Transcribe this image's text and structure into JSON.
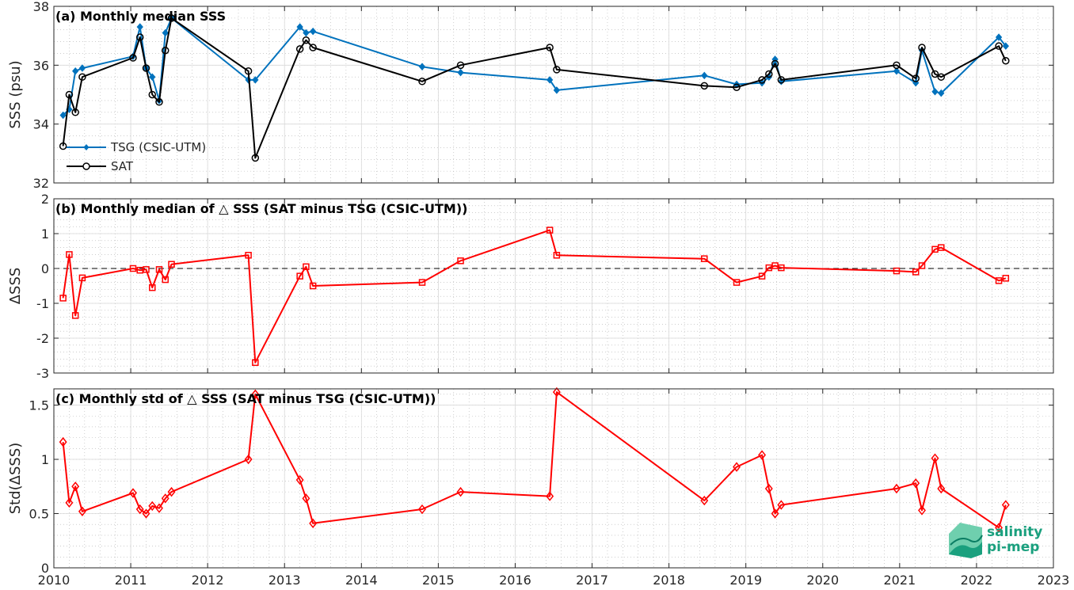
{
  "chart_data": [
    {
      "panel": "a",
      "type": "line",
      "title": "(a) Monthly median SSS",
      "ylabel": "SSS (psu)",
      "xlim": [
        2010,
        2023
      ],
      "ylim": [
        32,
        38
      ],
      "xticks": [
        2010,
        2011,
        2012,
        2013,
        2014,
        2015,
        2016,
        2017,
        2018,
        2019,
        2020,
        2021,
        2022,
        2023
      ],
      "yticks": [
        32,
        34,
        36,
        38
      ],
      "grid": true,
      "legend": "lower-left",
      "series": [
        {
          "name": "TSG (CSIC-UTM)",
          "color": "#0072BD",
          "marker": "diamond-filled",
          "x": [
            2010.12,
            2010.2,
            2010.28,
            2010.37,
            2011.03,
            2011.12,
            2011.2,
            2011.28,
            2011.37,
            2011.45,
            2011.53,
            2012.53,
            2012.62,
            2013.2,
            2013.28,
            2013.37,
            2014.79,
            2015.29,
            2016.45,
            2016.54,
            2018.46,
            2018.88,
            2019.21,
            2019.3,
            2019.38,
            2019.46,
            2020.96,
            2021.21,
            2021.29,
            2021.46,
            2021.54,
            2022.29,
            2022.38
          ],
          "y": [
            34.3,
            34.5,
            35.8,
            35.9,
            36.3,
            37.3,
            35.9,
            35.6,
            34.8,
            37.1,
            37.6,
            35.5,
            35.5,
            37.3,
            37.1,
            37.15,
            35.95,
            35.75,
            35.5,
            35.15,
            35.65,
            35.35,
            35.4,
            35.6,
            36.2,
            35.45,
            35.8,
            35.4,
            36.5,
            35.1,
            35.05,
            36.95,
            36.65
          ]
        },
        {
          "name": "SAT",
          "color": "#000000",
          "marker": "circle-open",
          "x": [
            2010.12,
            2010.2,
            2010.28,
            2010.37,
            2011.03,
            2011.12,
            2011.2,
            2011.28,
            2011.37,
            2011.45,
            2011.53,
            2012.53,
            2012.62,
            2013.2,
            2013.28,
            2013.37,
            2014.79,
            2015.29,
            2016.45,
            2016.54,
            2018.46,
            2018.88,
            2019.21,
            2019.3,
            2019.38,
            2019.46,
            2020.96,
            2021.21,
            2021.29,
            2021.46,
            2021.54,
            2022.29,
            2022.38
          ],
          "y": [
            33.25,
            35.0,
            34.4,
            35.6,
            36.25,
            36.95,
            35.9,
            35.0,
            34.75,
            36.5,
            37.6,
            35.8,
            32.85,
            36.55,
            36.85,
            36.6,
            35.45,
            36.0,
            36.6,
            35.85,
            35.3,
            35.25,
            35.5,
            35.7,
            36.05,
            35.5,
            36.0,
            35.55,
            36.6,
            35.7,
            35.6,
            36.65,
            36.15
          ]
        }
      ]
    },
    {
      "panel": "b",
      "type": "line",
      "title": "(b) Monthly median of △ SSS (SAT minus TSG (CSIC-UTM))",
      "ylabel": "ΔSSS",
      "xlim": [
        2010,
        2023
      ],
      "ylim": [
        -3,
        2
      ],
      "xticks": [
        2010,
        2011,
        2012,
        2013,
        2014,
        2015,
        2016,
        2017,
        2018,
        2019,
        2020,
        2021,
        2022,
        2023
      ],
      "yticks": [
        -3,
        -2,
        -1,
        0,
        1,
        2
      ],
      "grid": true,
      "reference_line_y": 0,
      "series": [
        {
          "color": "#FF0000",
          "marker": "square-open",
          "x": [
            2010.12,
            2010.2,
            2010.28,
            2010.37,
            2011.03,
            2011.12,
            2011.2,
            2011.28,
            2011.37,
            2011.45,
            2011.53,
            2012.53,
            2012.62,
            2013.2,
            2013.28,
            2013.37,
            2014.79,
            2015.29,
            2016.45,
            2016.54,
            2018.46,
            2018.88,
            2019.21,
            2019.3,
            2019.38,
            2019.46,
            2020.96,
            2021.21,
            2021.29,
            2021.46,
            2021.54,
            2022.29,
            2022.38
          ],
          "y": [
            -0.85,
            0.4,
            -1.35,
            -0.27,
            0.0,
            -0.05,
            -0.03,
            -0.55,
            -0.03,
            -0.32,
            0.12,
            0.38,
            -2.7,
            -0.22,
            0.05,
            -0.5,
            -0.4,
            0.22,
            1.1,
            0.38,
            0.28,
            -0.4,
            -0.22,
            0.02,
            0.08,
            0.02,
            -0.07,
            -0.1,
            0.08,
            0.55,
            0.6,
            -0.35,
            -0.28
          ]
        }
      ]
    },
    {
      "panel": "c",
      "type": "line",
      "title": "(c) Monthly std of △ SSS (SAT minus TSG (CSIC-UTM))",
      "ylabel": "Std(ΔSSS)",
      "xlim": [
        2010,
        2023
      ],
      "ylim": [
        0,
        1.65
      ],
      "xticks": [
        2010,
        2011,
        2012,
        2013,
        2014,
        2015,
        2016,
        2017,
        2018,
        2019,
        2020,
        2021,
        2022,
        2023
      ],
      "yticks": [
        0,
        0.5,
        1,
        1.5
      ],
      "grid": true,
      "series": [
        {
          "color": "#FF0000",
          "marker": "diamond-open",
          "x": [
            2010.12,
            2010.2,
            2010.28,
            2010.37,
            2011.03,
            2011.12,
            2011.2,
            2011.28,
            2011.37,
            2011.45,
            2011.53,
            2012.53,
            2012.62,
            2013.2,
            2013.28,
            2013.37,
            2014.79,
            2015.29,
            2016.45,
            2016.54,
            2018.46,
            2018.88,
            2019.21,
            2019.3,
            2019.38,
            2019.46,
            2020.96,
            2021.21,
            2021.29,
            2021.46,
            2021.54,
            2022.29,
            2022.38
          ],
          "y": [
            1.16,
            0.6,
            0.75,
            0.52,
            0.69,
            0.54,
            0.5,
            0.57,
            0.55,
            0.64,
            0.7,
            1.0,
            1.6,
            0.81,
            0.64,
            0.41,
            0.54,
            0.7,
            0.66,
            1.62,
            0.62,
            0.93,
            1.04,
            0.73,
            0.5,
            0.58,
            0.73,
            0.78,
            0.53,
            1.01,
            0.73,
            0.37,
            0.58
          ]
        }
      ]
    }
  ],
  "logo": {
    "line1": "salinity",
    "line2": "pi-mep",
    "color": "#1aa07e"
  }
}
